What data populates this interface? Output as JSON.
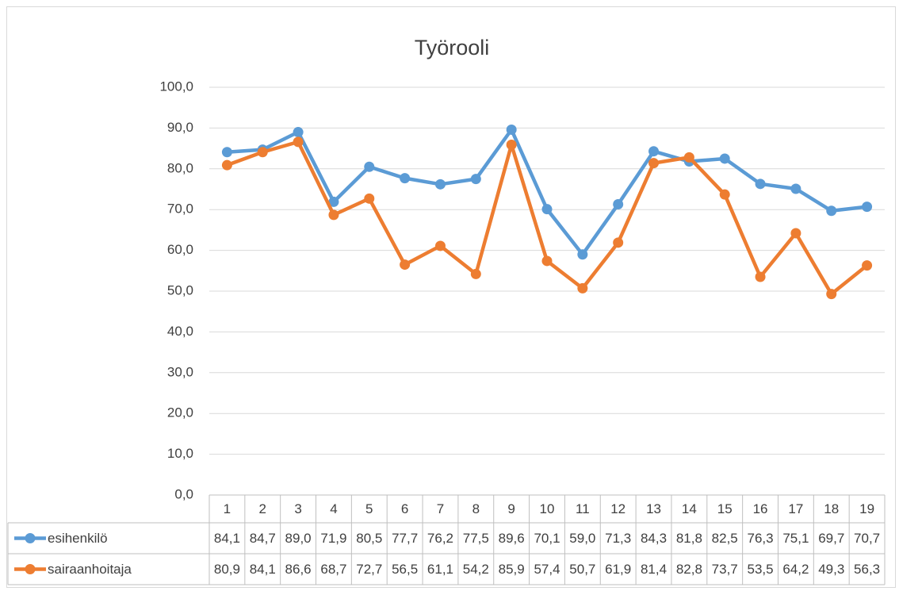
{
  "chart_data": {
    "type": "line",
    "title": "Työrooli",
    "categories": [
      "1",
      "2",
      "3",
      "4",
      "5",
      "6",
      "7",
      "8",
      "9",
      "10",
      "11",
      "12",
      "13",
      "14",
      "15",
      "16",
      "17",
      "18",
      "19"
    ],
    "series": [
      {
        "name": "esihenkilö",
        "color": "#5b9bd5",
        "values": [
          84.1,
          84.7,
          89.0,
          71.9,
          80.5,
          77.7,
          76.2,
          77.5,
          89.6,
          70.1,
          59.0,
          71.3,
          84.3,
          81.8,
          82.5,
          76.3,
          75.1,
          69.7,
          70.7
        ],
        "value_labels": [
          "84,1",
          "84,7",
          "89,0",
          "71,9",
          "80,5",
          "77,7",
          "76,2",
          "77,5",
          "89,6",
          "70,1",
          "59,0",
          "71,3",
          "84,3",
          "81,8",
          "82,5",
          "76,3",
          "75,1",
          "69,7",
          "70,7"
        ]
      },
      {
        "name": "sairaanhoitaja",
        "color": "#ed7d31",
        "values": [
          80.9,
          84.1,
          86.6,
          68.7,
          72.7,
          56.5,
          61.1,
          54.2,
          85.9,
          57.4,
          50.7,
          61.9,
          81.4,
          82.8,
          73.7,
          53.5,
          64.2,
          49.3,
          56.3
        ],
        "value_labels": [
          "80,9",
          "84,1",
          "86,6",
          "68,7",
          "72,7",
          "56,5",
          "61,1",
          "54,2",
          "85,9",
          "57,4",
          "50,7",
          "61,9",
          "81,4",
          "82,8",
          "73,7",
          "53,5",
          "64,2",
          "49,3",
          "56,3"
        ]
      }
    ],
    "ylim": [
      0,
      100
    ],
    "yticks": [
      {
        "value": 0,
        "label": "0,0"
      },
      {
        "value": 10,
        "label": "10,0"
      },
      {
        "value": 20,
        "label": "20,0"
      },
      {
        "value": 30,
        "label": "30,0"
      },
      {
        "value": 40,
        "label": "40,0"
      },
      {
        "value": 50,
        "label": "50,0"
      },
      {
        "value": 60,
        "label": "60,0"
      },
      {
        "value": 70,
        "label": "70,0"
      },
      {
        "value": 80,
        "label": "80,0"
      },
      {
        "value": 90,
        "label": "90,0"
      },
      {
        "value": 100,
        "label": "100,0"
      }
    ],
    "grid": true
  }
}
